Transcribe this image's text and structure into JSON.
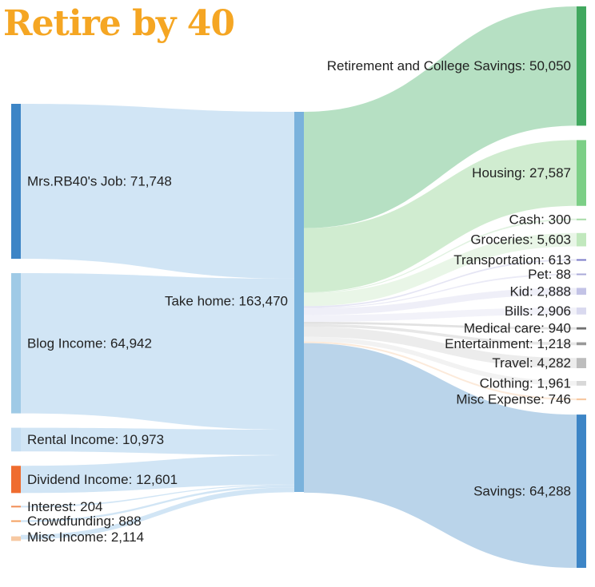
{
  "logo_text": "Retire by 40",
  "chart_data": {
    "type": "sankey",
    "sources": [
      {
        "key": "job",
        "label": "Mrs.RB40's Job: 71,748",
        "value": 71748,
        "color": "#3d85c6"
      },
      {
        "key": "blog",
        "label": "Blog Income: 64,942",
        "value": 64942,
        "color": "#9fcae6"
      },
      {
        "key": "rental",
        "label": "Rental Income: 10,973",
        "value": 10973,
        "color": "#c5def2"
      },
      {
        "key": "dividend",
        "label": "Dividend Income: 12,601",
        "value": 12601,
        "color": "#ef6c2f"
      },
      {
        "key": "interest",
        "label": "Interest: 204",
        "value": 204,
        "color": "#f08c55"
      },
      {
        "key": "crowdfunding",
        "label": "Crowdfunding: 888",
        "value": 888,
        "color": "#f4a05f"
      },
      {
        "key": "misc-income",
        "label": "Misc Income: 2,114",
        "value": 2114,
        "color": "#f7c9a2"
      }
    ],
    "middle": {
      "key": "take-home",
      "label": "Take home: 163,470",
      "value": 163470,
      "color": "#7ab2dc"
    },
    "targets": [
      {
        "key": "retirement",
        "label": "Retirement and College Savings: 50,050",
        "value": 50050,
        "color": "#41a85f",
        "flow": "#a9dab9"
      },
      {
        "key": "housing",
        "label": "Housing: 27,587",
        "value": 27587,
        "color": "#7ccf86",
        "flow": "#c8e9c8"
      },
      {
        "key": "cash",
        "label": "Cash: 300",
        "value": 300,
        "color": "#a8dca8",
        "flow": "#daf0da"
      },
      {
        "key": "groceries",
        "label": "Groceries: 5,603",
        "value": 5603,
        "color": "#c1e8bd",
        "flow": "#e5f5e3"
      },
      {
        "key": "transportation",
        "label": "Transportation: 613",
        "value": 613,
        "color": "#7c7cc8",
        "flow": "#e0e0f2"
      },
      {
        "key": "pet",
        "label": "Pet: 88",
        "value": 88,
        "color": "#a9a9d9",
        "flow": "#e6e6f4"
      },
      {
        "key": "kid",
        "label": "Kid: 2,888",
        "value": 2888,
        "color": "#c3c3e6",
        "flow": "#ececf7"
      },
      {
        "key": "bills",
        "label": "Bills: 2,906",
        "value": 2906,
        "color": "#d9d9ef",
        "flow": "#f0f0f8"
      },
      {
        "key": "medical",
        "label": "Medical care: 940",
        "value": 940,
        "color": "#707070",
        "flow": "#dddddd"
      },
      {
        "key": "entertainment",
        "label": "Entertainment: 1,218",
        "value": 1218,
        "color": "#999999",
        "flow": "#e3e3e3"
      },
      {
        "key": "travel",
        "label": "Travel: 4,282",
        "value": 4282,
        "color": "#bdbdbd",
        "flow": "#e9e9e9"
      },
      {
        "key": "clothing",
        "label": "Clothing: 1,961",
        "value": 1961,
        "color": "#d8d8d8",
        "flow": "#f0f0f0"
      },
      {
        "key": "misc-expense",
        "label": "Misc Expense: 746",
        "value": 746,
        "color": "#f7c9a2",
        "flow": "#fbe6d4"
      },
      {
        "key": "savings",
        "label": "Savings: 64,288",
        "value": 64288,
        "color": "#3d85c6",
        "flow": "#aecde6"
      }
    ]
  }
}
